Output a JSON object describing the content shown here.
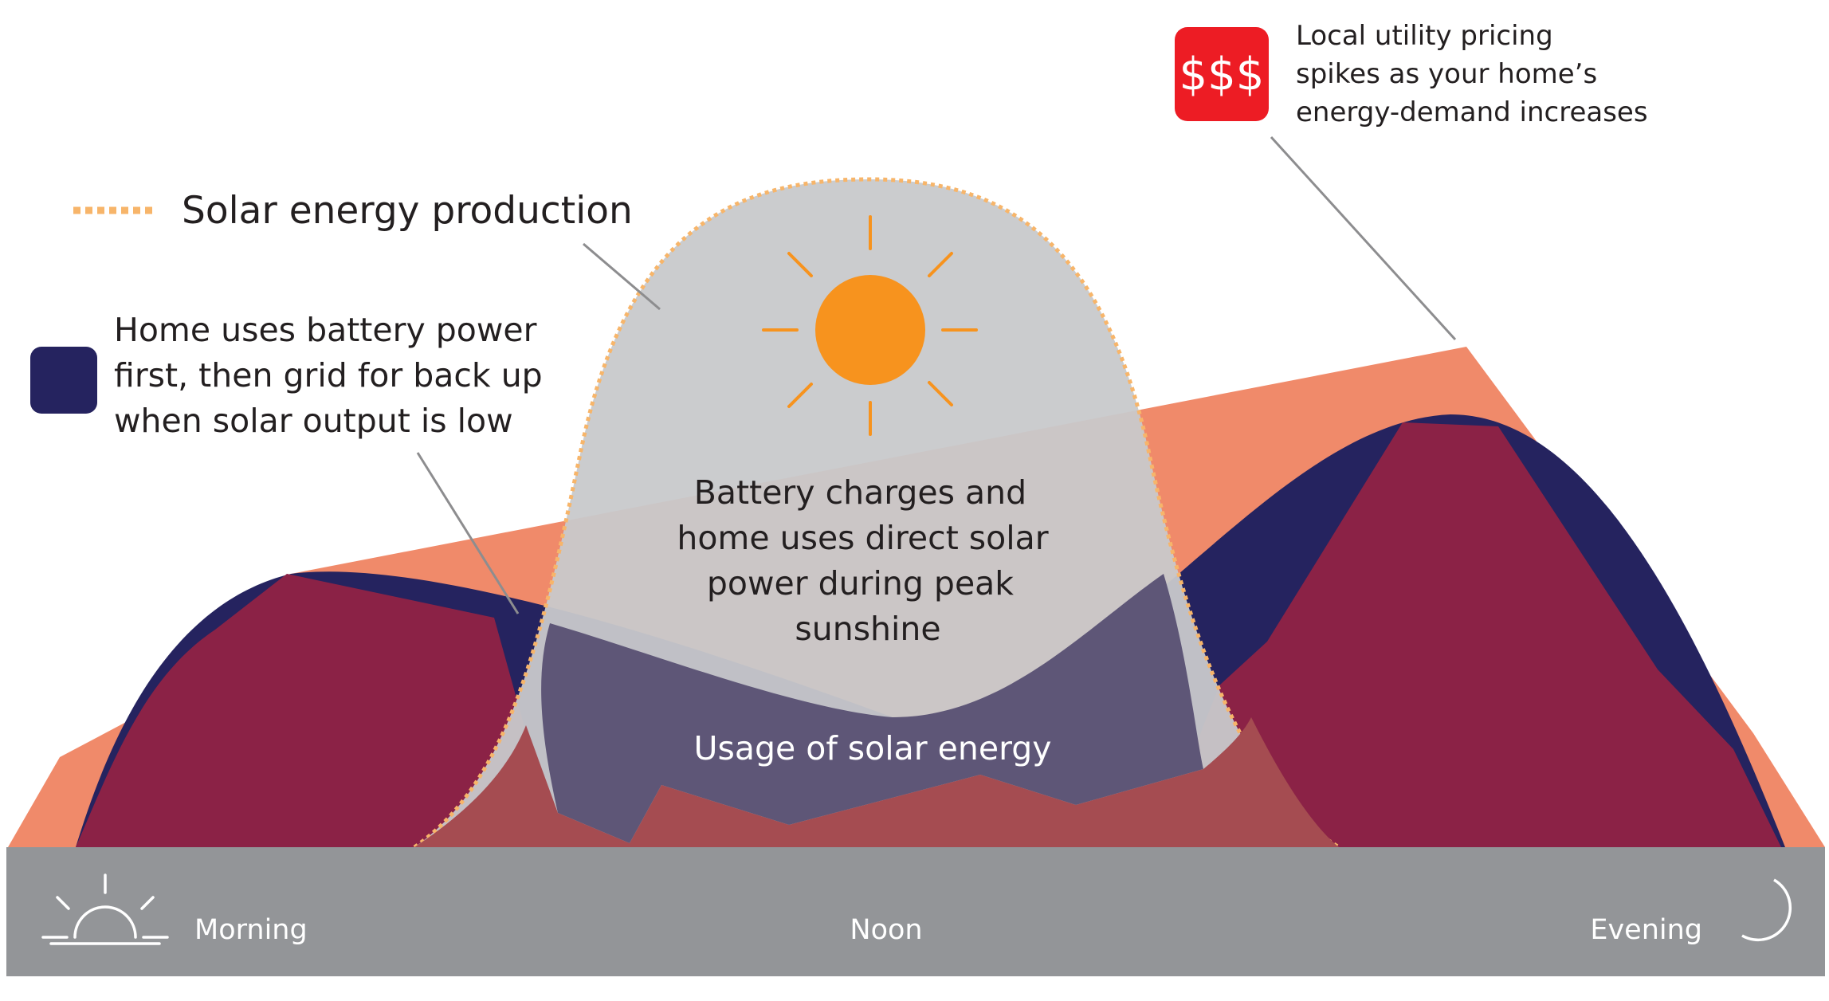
{
  "legend": {
    "solar_production": "Solar energy production",
    "battery_text": [
      "Home uses battery power",
      "first, then grid for back up",
      "when solar output is low"
    ]
  },
  "pricing": {
    "badge": "$$$",
    "text": [
      "Local utility pricing",
      "spikes as your home’s",
      "energy-demand increases"
    ]
  },
  "center": {
    "charge_text": [
      "Battery charges and",
      "home uses direct solar",
      "power during peak",
      "sunshine"
    ],
    "usage_label": "Usage of solar energy"
  },
  "timeline": {
    "morning": "Morning",
    "noon": "Noon",
    "evening": "Evening"
  },
  "colors": {
    "battery_navy": "#25235f",
    "demand_maroon": "#8b2246",
    "pricing_salmon": "#f08a6a",
    "solar_gray": "#c8c9cb",
    "solar_dotted": "#f7b56a",
    "sun_orange": "#f7931e",
    "price_red": "#ed1c24",
    "timeline_gray": "#939598"
  }
}
